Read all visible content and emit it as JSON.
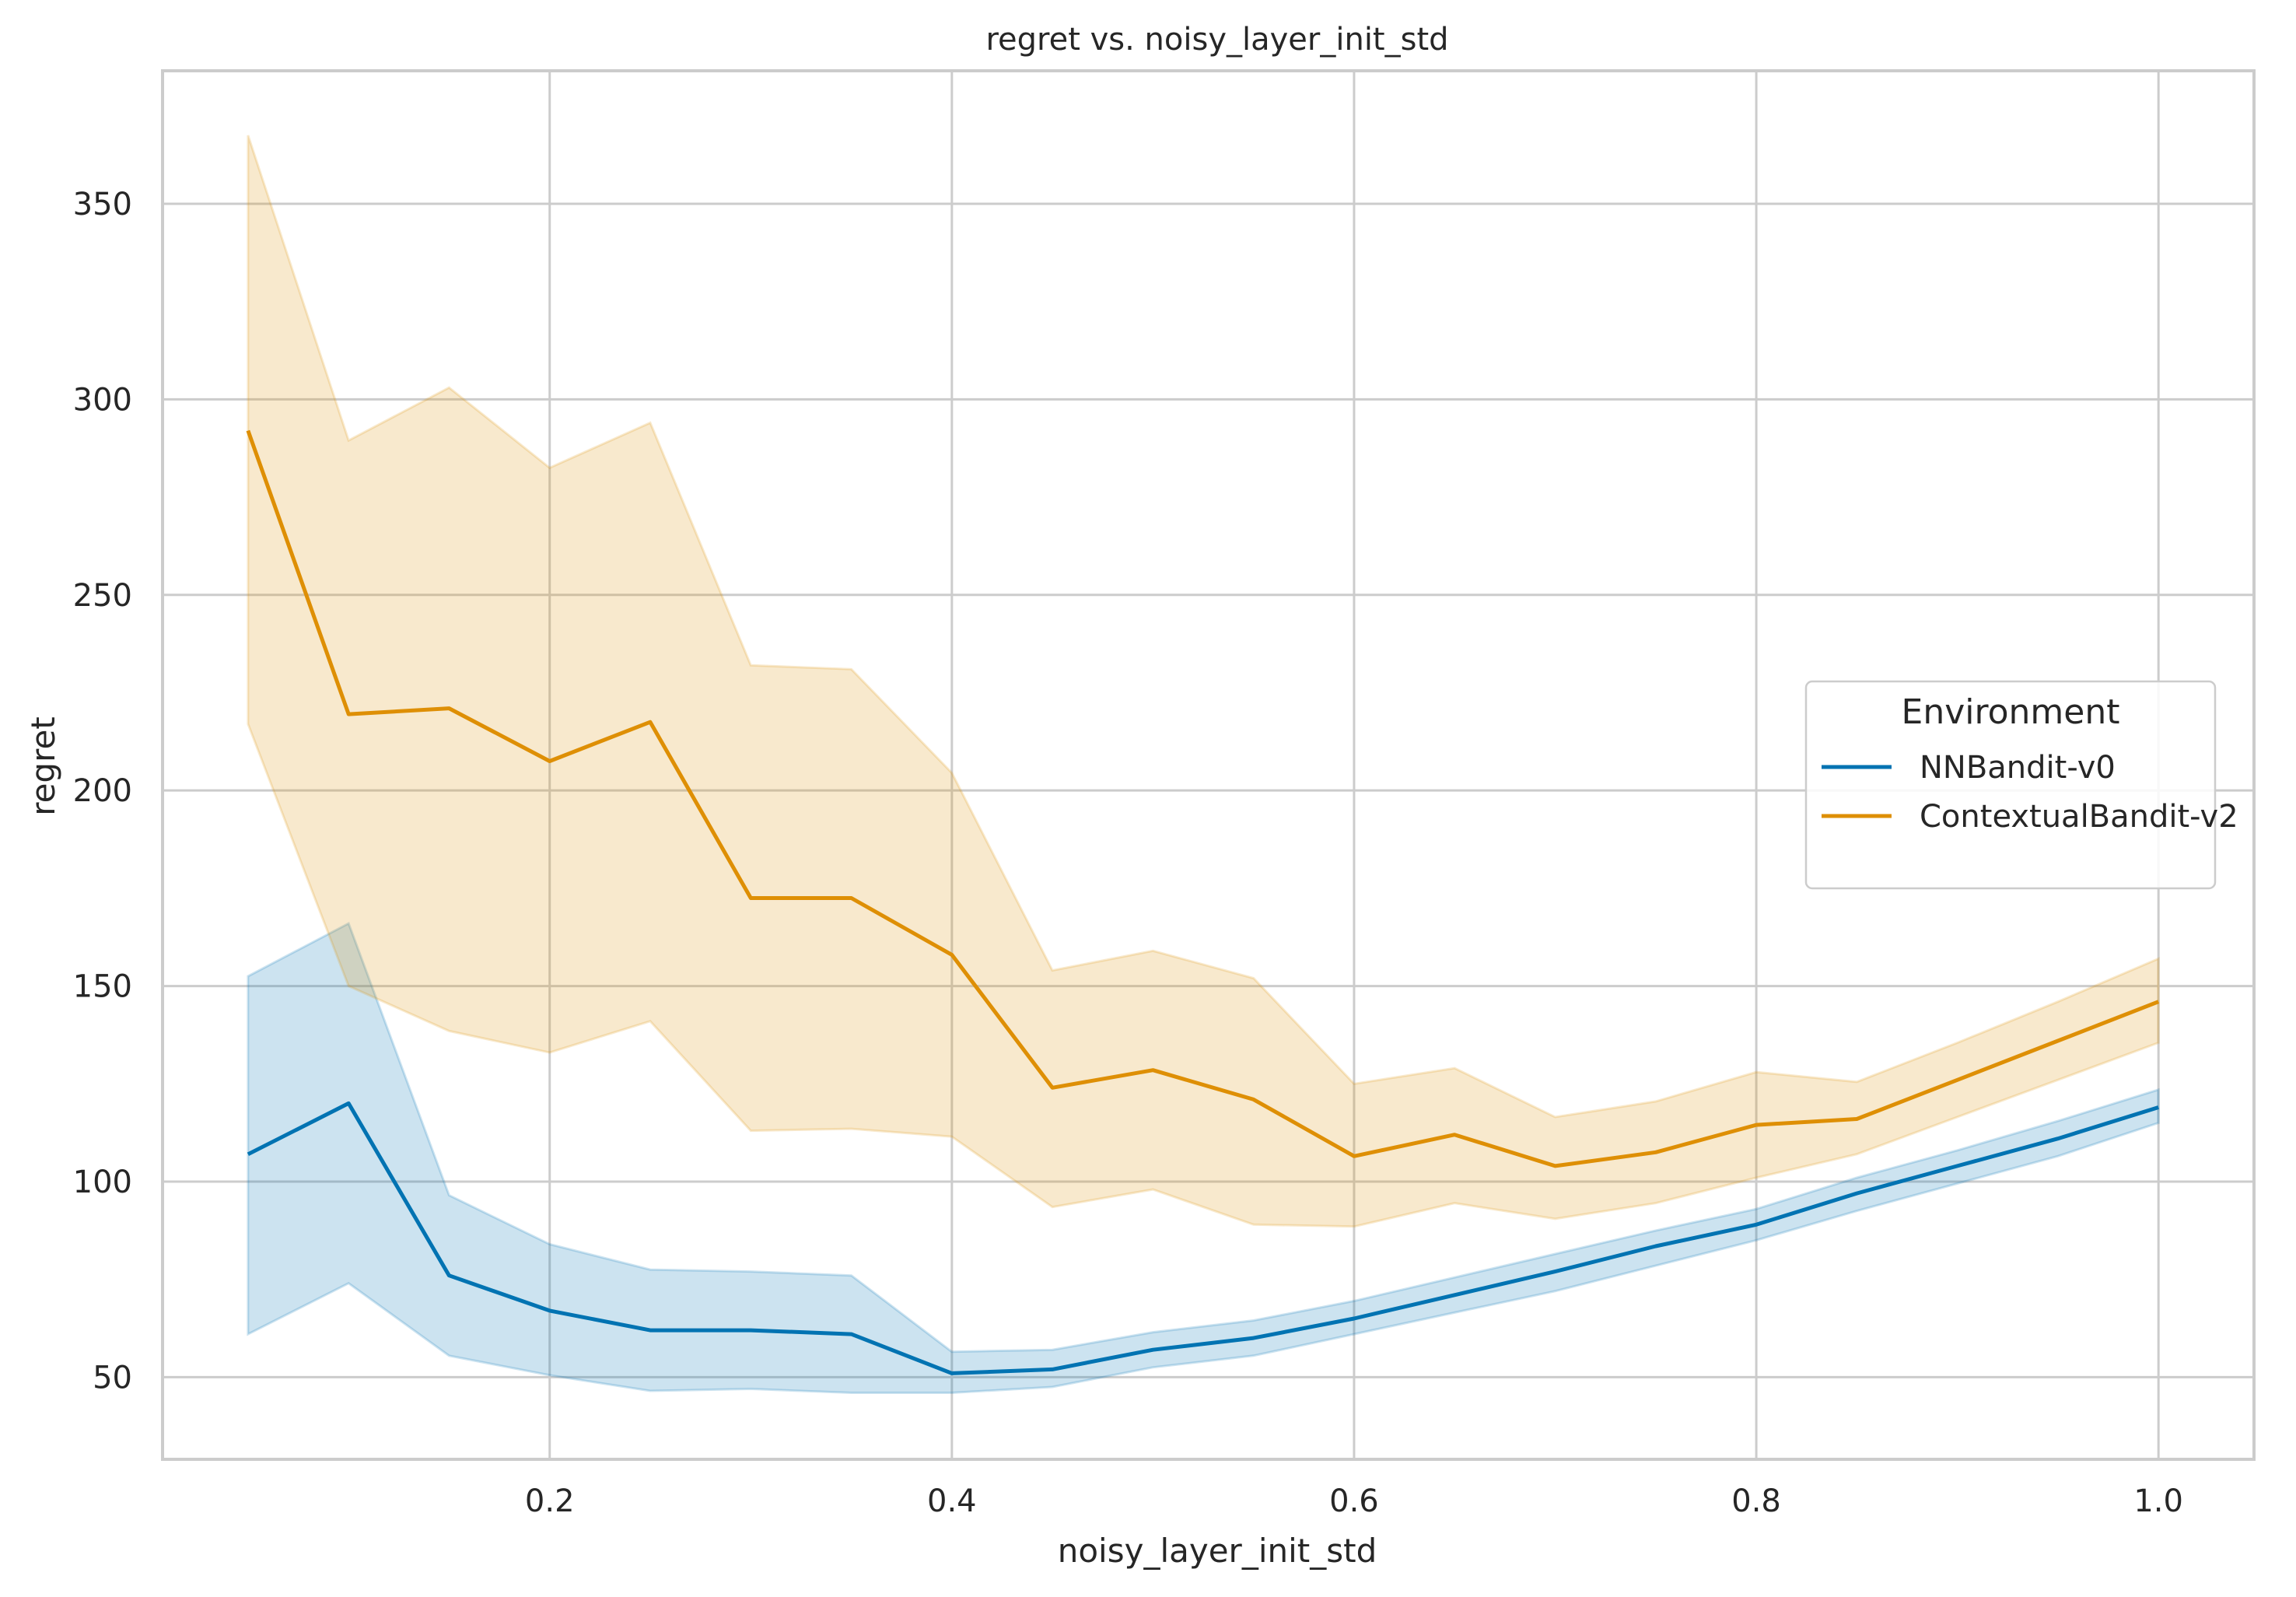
{
  "chart_data": {
    "type": "line",
    "title": "regret vs. noisy_layer_init_std",
    "xlabel": "noisy_layer_init_std",
    "ylabel": "regret",
    "xlim": [
      0.0075,
      1.0475
    ],
    "ylim": [
      29,
      384
    ],
    "x_ticks": [
      0.2,
      0.4,
      0.6,
      0.8,
      1.0
    ],
    "x_tick_labels": [
      "0.2",
      "0.4",
      "0.6",
      "0.8",
      "1.0"
    ],
    "y_ticks": [
      50,
      100,
      150,
      200,
      250,
      300,
      350
    ],
    "y_tick_labels": [
      "50",
      "100",
      "150",
      "200",
      "250",
      "300",
      "350"
    ],
    "grid": true,
    "legend": {
      "title": "Environment",
      "placement": "center-right"
    },
    "x": [
      0.05,
      0.1,
      0.15,
      0.2,
      0.25,
      0.3,
      0.35,
      0.4,
      0.45,
      0.5,
      0.55,
      0.6,
      0.65,
      0.7,
      0.75,
      0.8,
      0.85,
      0.9,
      0.95,
      1.0
    ],
    "series": [
      {
        "name": "NNBandit-v0",
        "color": "#0173b2",
        "values": [
          107,
          120,
          76,
          67,
          62,
          62,
          61,
          51,
          52,
          57,
          60,
          65,
          71,
          77,
          83.5,
          89,
          97,
          104,
          111,
          119
        ],
        "ci_lower": [
          61,
          74,
          55.5,
          50.5,
          46.5,
          47,
          46,
          46,
          47.5,
          52.5,
          55.5,
          61,
          66.5,
          72,
          78.5,
          85,
          92.5,
          99.5,
          106.5,
          115
        ],
        "ci_upper": [
          152.5,
          166,
          96.5,
          84,
          77.5,
          77,
          76,
          56.5,
          57,
          61.5,
          64.5,
          69.5,
          75.5,
          81.5,
          87.5,
          93,
          101,
          108,
          115.5,
          123.5
        ]
      },
      {
        "name": "ContextualBandit-v2",
        "color": "#de8f05",
        "values": [
          292,
          219.5,
          221,
          207.5,
          217.5,
          172.5,
          172.5,
          158,
          124,
          128.5,
          121,
          106.5,
          112,
          104,
          107.5,
          114.5,
          116,
          126,
          136,
          146
        ],
        "ci_lower": [
          217,
          150,
          138.5,
          133,
          141,
          113,
          113.5,
          111.5,
          93.5,
          98,
          89,
          88.5,
          94.5,
          90.5,
          94.5,
          101,
          107,
          116.5,
          126,
          135.5
        ],
        "ci_upper": [
          367.5,
          289.5,
          303,
          282.5,
          294,
          232,
          231,
          204.5,
          154,
          159,
          152,
          125,
          129,
          116.5,
          120.5,
          128,
          125.5,
          135.5,
          146,
          157
        ]
      }
    ]
  }
}
